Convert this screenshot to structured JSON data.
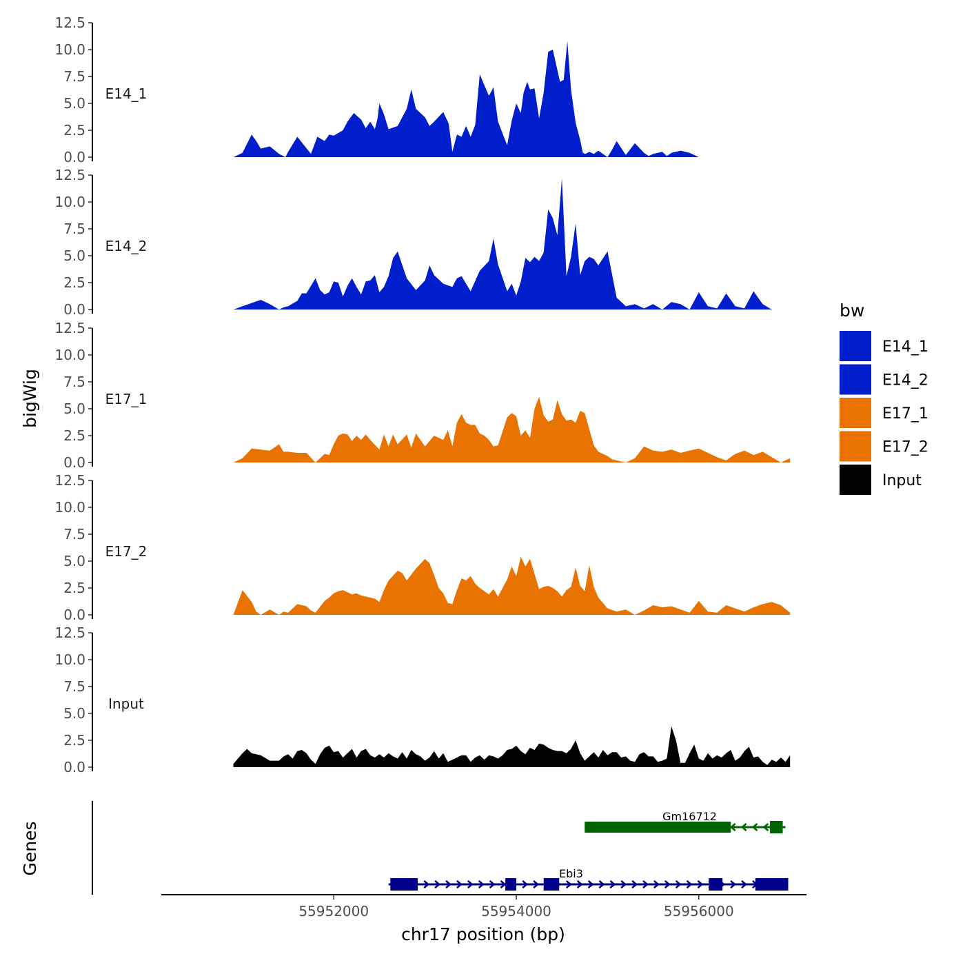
{
  "chart_data": {
    "type": "area",
    "title": "",
    "xlabel": "chr17 position (bp)",
    "ylabel": "bigWig",
    "genes_label": "Genes",
    "xlim": [
      55950110,
      55957180
    ],
    "xticks": [
      55952000,
      55954000,
      55956000
    ],
    "xtick_labels": [
      "55952000",
      "55954000",
      "55956000"
    ],
    "ylim": [
      0,
      12.5
    ],
    "yticks": [
      0,
      2.5,
      5,
      7.5,
      10,
      12.5
    ],
    "ytick_labels": [
      "0.0",
      "2.5",
      "5.0",
      "7.5",
      "10.0",
      "12.5"
    ],
    "legend": {
      "title": "bw",
      "position": "right",
      "entries": [
        "E14_1",
        "E14_2",
        "E17_1",
        "E17_2",
        "Input"
      ]
    },
    "colors": {
      "E14_1": "#001ecc",
      "E14_2": "#001ecc",
      "E17_1": "#e87300",
      "E17_2": "#e87300",
      "Input": "#000000",
      "gene_plus": "#00008b",
      "gene_minus": "#006400"
    },
    "series": [
      {
        "name": "E14_1",
        "x": [
          55950900,
          55951000,
          55951100,
          55951150,
          55951200,
          55951300,
          55951400,
          55951470,
          55951500,
          55951600,
          55951750,
          55951820,
          55951900,
          55951950,
          55952000,
          55952100,
          55952150,
          55952220,
          55952300,
          55952350,
          55952400,
          55952450,
          55952480,
          55952500,
          55952550,
          55952600,
          55952700,
          55952800,
          55952850,
          55952900,
          55953000,
          55953050,
          55953100,
          55953200,
          55953260,
          55953300,
          55953350,
          55953400,
          55953450,
          55953500,
          55953550,
          55953600,
          55953700,
          55953750,
          55953800,
          55953900,
          55953950,
          55954000,
          55954050,
          55954080,
          55954120,
          55954150,
          55954200,
          55954250,
          55954300,
          55954350,
          55954400,
          55954480,
          55954520,
          55954560,
          55954600,
          55954650,
          55954700,
          55954730,
          55954760,
          55954800,
          55954850,
          55954900,
          55955000,
          55955050,
          55955100,
          55955200,
          55955300,
          55955400,
          55955450,
          55955500,
          55955600,
          55955650,
          55955700,
          55955800,
          55955900,
          55955950,
          55956000,
          55956100,
          55956200,
          55956300,
          55956400,
          55956500,
          55956600,
          55956700,
          55956800,
          55956900,
          55957000
        ],
        "values": [
          0,
          0.4,
          2.1,
          1.5,
          0.8,
          1,
          0.3,
          0,
          0.5,
          1.9,
          0.3,
          1.9,
          1.5,
          2.1,
          2,
          2.5,
          3.3,
          4.1,
          3.5,
          2.7,
          3.3,
          2.6,
          3.6,
          5,
          4,
          2.6,
          2.9,
          4.5,
          6.3,
          4.5,
          3.7,
          2.9,
          3.3,
          4.2,
          3.1,
          0.5,
          2.1,
          1.9,
          2.9,
          1.9,
          3,
          7.7,
          5.7,
          6.5,
          3.3,
          1.1,
          3.4,
          5,
          4.1,
          6,
          7,
          6.3,
          6.4,
          3.6,
          6,
          9.8,
          10,
          7,
          7.2,
          10.8,
          6.3,
          3.2,
          1.6,
          0.4,
          0.3,
          0.5,
          0.3,
          0.6,
          0,
          0.7,
          1.5,
          0.2,
          1.3,
          0.4,
          0.1,
          0.3,
          0.5,
          0.1,
          0.4,
          0.6,
          0.4,
          0.2,
          0,
          0,
          0,
          0,
          0,
          0,
          0,
          0,
          0,
          0,
          0
        ]
      },
      {
        "name": "E14_2",
        "x": [
          55950900,
          55951000,
          55951100,
          55951200,
          55951300,
          55951400,
          55951450,
          55951500,
          55951600,
          55951650,
          55951700,
          55951800,
          55951850,
          55951900,
          55951950,
          55952000,
          55952050,
          55952100,
          55952150,
          55952200,
          55952250,
          55952300,
          55952350,
          55952400,
          55952450,
          55952500,
          55952550,
          55952600,
          55952650,
          55952700,
          55952800,
          55952900,
          55953000,
          55953050,
          55953100,
          55953200,
          55953300,
          55953350,
          55953400,
          55953450,
          55953500,
          55953600,
          55953700,
          55953750,
          55953800,
          55953900,
          55953950,
          55954000,
          55954050,
          55954100,
          55954150,
          55954200,
          55954250,
          55954300,
          55954350,
          55954400,
          55954450,
          55954500,
          55954550,
          55954600,
          55954650,
          55954700,
          55954750,
          55954800,
          55954850,
          55954900,
          55955000,
          55955100,
          55955200,
          55955300,
          55955400,
          55955500,
          55955600,
          55955700,
          55955800,
          55955900,
          55956000,
          55956100,
          55956200,
          55956300,
          55956400,
          55956500,
          55956600,
          55956700,
          55956800,
          55956900,
          55957000
        ],
        "values": [
          0,
          0.3,
          0.6,
          0.9,
          0.5,
          0,
          0.2,
          0.3,
          0.8,
          1.5,
          1.5,
          2.9,
          1.8,
          1.4,
          1.6,
          2.6,
          2.5,
          1.2,
          2.2,
          2.9,
          2.1,
          1.4,
          2.6,
          2.7,
          3.2,
          1.6,
          2.1,
          3.1,
          4.8,
          5.4,
          2.9,
          1.8,
          2.7,
          4.1,
          3.2,
          2.4,
          2.1,
          2.9,
          3.1,
          2.4,
          1.7,
          3.6,
          4.5,
          6.6,
          4.2,
          1.7,
          2.4,
          1.3,
          2.6,
          4.8,
          4.4,
          4.9,
          4.5,
          5.3,
          9.3,
          8.5,
          6.9,
          12.2,
          3.1,
          4.9,
          8,
          3.2,
          4.5,
          4.9,
          4.7,
          4.1,
          5.4,
          1.1,
          0.3,
          0.5,
          0.1,
          0.5,
          0,
          0.7,
          0.5,
          0,
          1.6,
          0.3,
          0.1,
          1.5,
          0.3,
          0.1,
          1.7,
          0.5,
          0,
          0,
          0
        ]
      },
      {
        "name": "E17_1",
        "x": [
          55950900,
          55951000,
          55951100,
          55951200,
          55951300,
          55951400,
          55951450,
          55951500,
          55951600,
          55951700,
          55951800,
          55951850,
          55951900,
          55951950,
          55952000,
          55952050,
          55952100,
          55952150,
          55952200,
          55952250,
          55952300,
          55952350,
          55952400,
          55952500,
          55952550,
          55952600,
          55952650,
          55952700,
          55952800,
          55952850,
          55952900,
          55953000,
          55953100,
          55953200,
          55953250,
          55953300,
          55953350,
          55953400,
          55953450,
          55953500,
          55953550,
          55953600,
          55953650,
          55953700,
          55953750,
          55953800,
          55953900,
          55953950,
          55954000,
          55954050,
          55954100,
          55954150,
          55954200,
          55954250,
          55954300,
          55954350,
          55954400,
          55954450,
          55954500,
          55954550,
          55954600,
          55954650,
          55954700,
          55954750,
          55954800,
          55954850,
          55954900,
          55955000,
          55955050,
          55955100,
          55955200,
          55955300,
          55955400,
          55955500,
          55955600,
          55955700,
          55955800,
          55955900,
          55956000,
          55956100,
          55956200,
          55956300,
          55956400,
          55956500,
          55956600,
          55956700,
          55956800,
          55956900,
          55957000
        ],
        "values": [
          0,
          0.4,
          1.3,
          1.2,
          1.1,
          1.7,
          1,
          1,
          0.9,
          0.9,
          0,
          0.4,
          0.8,
          0.7,
          1.7,
          2.5,
          2.7,
          2.6,
          2,
          2.5,
          2.1,
          2.6,
          2.1,
          1.2,
          2.6,
          1.5,
          2.6,
          1.7,
          2.6,
          1.4,
          2.7,
          1.5,
          2.5,
          2.1,
          3,
          1.5,
          3.7,
          4.5,
          3.7,
          3.5,
          3.5,
          2.7,
          2.5,
          2.1,
          1.5,
          1.6,
          4.2,
          4.6,
          4.3,
          2.5,
          3,
          2.3,
          5,
          6.1,
          4.4,
          3.8,
          4,
          5.8,
          4.5,
          3.9,
          4,
          3.7,
          4.8,
          4.6,
          3.1,
          1.6,
          1,
          0.6,
          0.3,
          0.2,
          0,
          0.4,
          1.5,
          1.1,
          1,
          1.2,
          0.9,
          1.1,
          1.3,
          0.9,
          0.5,
          0.2,
          0.8,
          1.1,
          0.7,
          1,
          0.5,
          0,
          0.4
        ]
      },
      {
        "name": "E17_2",
        "x": [
          55950900,
          55951000,
          55951100,
          55951150,
          55951200,
          55951300,
          55951400,
          55951450,
          55951500,
          55951600,
          55951700,
          55951750,
          55951800,
          55951900,
          55951950,
          55952000,
          55952050,
          55952100,
          55952200,
          55952250,
          55952300,
          55952350,
          55952400,
          55952450,
          55952500,
          55952550,
          55952600,
          55952700,
          55952750,
          55952800,
          55952900,
          55953000,
          55953050,
          55953100,
          55953150,
          55953200,
          55953250,
          55953300,
          55953350,
          55953400,
          55953450,
          55953500,
          55953550,
          55953600,
          55953700,
          55953750,
          55953800,
          55953900,
          55953950,
          55954000,
          55954050,
          55954100,
          55954150,
          55954200,
          55954250,
          55954300,
          55954350,
          55954400,
          55954450,
          55954500,
          55954550,
          55954600,
          55954650,
          55954700,
          55954750,
          55954800,
          55954850,
          55954900,
          55955000,
          55955100,
          55955200,
          55955300,
          55955400,
          55955500,
          55955600,
          55955700,
          55955800,
          55955900,
          55956000,
          55956100,
          55956200,
          55956300,
          55956400,
          55956500,
          55956600,
          55956700,
          55956800,
          55956900,
          55957000
        ],
        "values": [
          0,
          2.3,
          1.2,
          0.3,
          0,
          0.5,
          0,
          0.3,
          0.2,
          1,
          0.8,
          0.4,
          0.2,
          1.3,
          1.6,
          2,
          2.2,
          2.3,
          1.9,
          2,
          1.8,
          1.7,
          1.6,
          1.5,
          1.2,
          2.3,
          3.2,
          4.1,
          3.9,
          3.2,
          4.3,
          5.2,
          4.8,
          3.7,
          2.5,
          2,
          1.1,
          1,
          2.3,
          3.4,
          3.2,
          3.6,
          2.9,
          2.5,
          1.9,
          2.4,
          1.7,
          3.3,
          4.5,
          3.6,
          5.4,
          4.5,
          5.2,
          3.8,
          2.4,
          2.6,
          2.7,
          2.5,
          2.2,
          1.7,
          2.3,
          2.6,
          4.4,
          2.7,
          2.2,
          4.6,
          2.6,
          1.6,
          0.6,
          0.3,
          0.5,
          0,
          0.4,
          0.9,
          0.7,
          0.8,
          0.5,
          0.2,
          1.3,
          0.3,
          0.2,
          0.9,
          0.6,
          0.3,
          0.7,
          1,
          1.2,
          0.9,
          0.2
        ]
      },
      {
        "name": "Input",
        "x": [
          55950900,
          55951000,
          55951050,
          55951100,
          55951200,
          55951300,
          55951400,
          55951450,
          55951500,
          55951550,
          55951600,
          55951650,
          55951700,
          55951750,
          55951800,
          55951850,
          55951900,
          55951950,
          55952000,
          55952050,
          55952100,
          55952150,
          55952200,
          55952250,
          55952300,
          55952350,
          55952400,
          55952450,
          55952500,
          55952550,
          55952600,
          55952650,
          55952700,
          55952750,
          55952800,
          55952850,
          55952900,
          55952950,
          55953000,
          55953050,
          55953100,
          55953150,
          55953200,
          55953250,
          55953300,
          55953350,
          55953400,
          55953450,
          55953500,
          55953550,
          55953600,
          55953650,
          55953700,
          55953750,
          55953800,
          55953850,
          55953900,
          55953950,
          55954000,
          55954050,
          55954100,
          55954150,
          55954200,
          55954250,
          55954300,
          55954350,
          55954400,
          55954450,
          55954500,
          55954550,
          55954600,
          55954650,
          55954700,
          55954750,
          55954800,
          55954850,
          55954900,
          55954950,
          55955000,
          55955050,
          55955100,
          55955150,
          55955200,
          55955250,
          55955300,
          55955350,
          55955400,
          55955450,
          55955500,
          55955550,
          55955600,
          55955650,
          55955700,
          55955750,
          55955800,
          55955850,
          55955900,
          55955950,
          55956000,
          55956050,
          55956100,
          55956150,
          55956200,
          55956250,
          55956300,
          55956350,
          55956400,
          55956450,
          55956500,
          55956550,
          55956600,
          55956650,
          55956700,
          55956750,
          55956800,
          55956850,
          55956900,
          55956950,
          55957000
        ],
        "values": [
          0.3,
          1.3,
          1.7,
          1.3,
          1.1,
          0.6,
          0.6,
          1,
          1.2,
          0.8,
          1.5,
          1.6,
          1.3,
          0.7,
          0.3,
          1.2,
          1.8,
          2,
          1.4,
          1.5,
          0.9,
          1.3,
          1.7,
          0.9,
          1.5,
          1.7,
          1.1,
          0.9,
          1.2,
          0.9,
          1.3,
          1,
          0.8,
          1.4,
          0.8,
          1.6,
          1.2,
          1,
          0.6,
          0.9,
          1.5,
          0.8,
          1.3,
          0.5,
          0.7,
          0.9,
          1.1,
          1.1,
          0.5,
          0.9,
          1.1,
          0.7,
          1.1,
          1,
          0.8,
          1.1,
          1.6,
          1.7,
          2,
          1.5,
          1.2,
          1.8,
          1.6,
          2.2,
          2.1,
          1.8,
          1.6,
          1.5,
          1.5,
          1.3,
          1.7,
          2.5,
          1.3,
          0.6,
          1,
          1.4,
          0.9,
          1.6,
          1.1,
          1.4,
          1.4,
          0.9,
          1,
          0.6,
          0.5,
          1.2,
          1.4,
          1,
          1,
          0.5,
          0.6,
          0.8,
          3.8,
          2.5,
          0.4,
          0.4,
          1.3,
          2.1,
          0.8,
          0.6,
          1.3,
          0.8,
          1.1,
          0.9,
          1.3,
          1.6,
          0.6,
          0.9,
          1.5,
          1.9,
          0.9,
          1,
          0.5,
          0.2,
          0.7,
          0.5,
          0.9,
          0.5,
          1.1
        ]
      }
    ],
    "genes": [
      {
        "name": "Gm16712",
        "strand": "-",
        "start": 55954750,
        "end": 55956950,
        "thick_start": 55954750,
        "thick_end": 55956350,
        "exons": [
          [
            55956780,
            55956920
          ]
        ]
      },
      {
        "name": "Ebi3",
        "strand": "+",
        "start": 55952600,
        "end": 55956980,
        "exons": [
          [
            55952620,
            55952920
          ],
          [
            55953880,
            55954000
          ],
          [
            55954300,
            55954470
          ],
          [
            55956110,
            55956260
          ],
          [
            55956620,
            55956980
          ]
        ]
      }
    ]
  }
}
